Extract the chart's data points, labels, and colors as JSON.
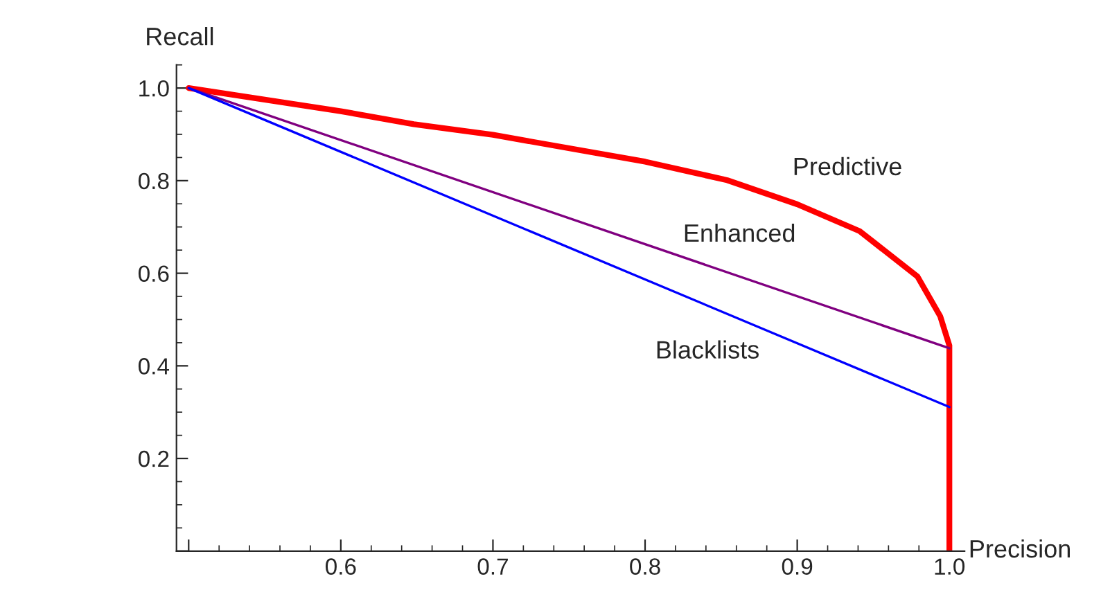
{
  "chart_data": {
    "type": "line",
    "xlabel": "Precision",
    "ylabel": "Recall",
    "xlim": [
      0.492,
      1.01
    ],
    "ylim": [
      0,
      1.05
    ],
    "xticks": [
      {
        "value": 0.5,
        "label": null
      },
      0.6,
      0.7,
      0.8,
      0.9,
      {
        "value": 1,
        "label": "1.0"
      }
    ],
    "yticks": [
      {
        "value": 0,
        "label": null
      },
      0.2,
      0.4,
      0.6,
      0.8,
      {
        "value": 1,
        "label": "1.0"
      }
    ],
    "grid": false,
    "legend": false,
    "marker": "none",
    "line_style": "solid",
    "series": [
      {
        "name": "Predictive",
        "color": "#ff0000",
        "x": [
          0.5,
          0.6,
          0.648,
          0.7,
          0.8,
          0.854,
          0.9,
          0.941,
          0.979,
          0.994,
          1.0,
          1.0
        ],
        "values": [
          1.0,
          0.95,
          0.922,
          0.899,
          0.841,
          0.801,
          0.749,
          0.691,
          0.593,
          0.507,
          0.444,
          0.0
        ]
      },
      {
        "name": "Enhanced",
        "color": "#800080",
        "x": [
          0.5,
          1.0
        ],
        "values": [
          1.0,
          0.438
        ]
      },
      {
        "name": "Blacklists",
        "color": "#0000ff",
        "x": [
          0.5,
          1.0
        ],
        "values": [
          1.0,
          0.311
        ]
      }
    ]
  }
}
